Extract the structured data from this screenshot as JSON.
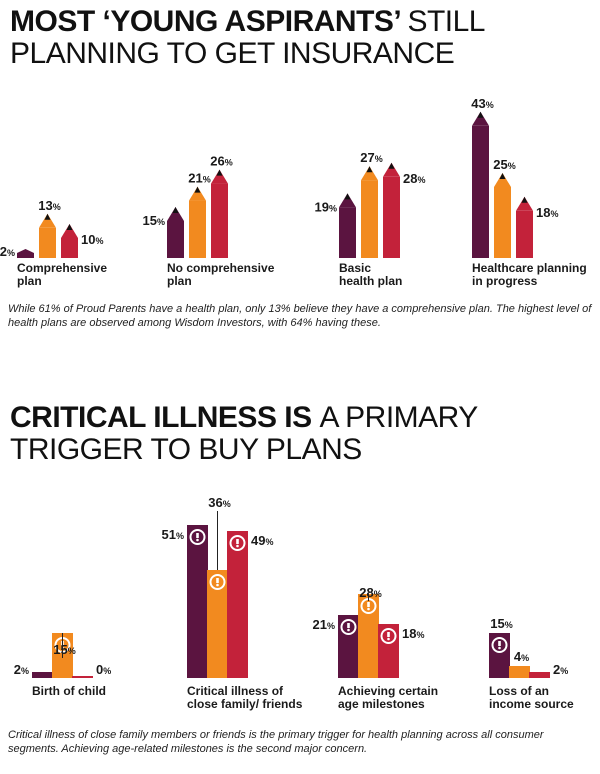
{
  "chart_data": [
    {
      "type": "bar",
      "title_bold": "MOST ‘YOUNG ASPIRANTS’",
      "title_light_1": "STILL",
      "title_line2": "PLANNING TO GET INSURANCE",
      "categories": [
        "Comprehensive plan",
        "No comprehensive plan",
        "Basic health plan",
        "Healthcare planning in progress"
      ],
      "category_lines": [
        [
          "Comprehensive",
          "plan"
        ],
        [
          "No comprehensive",
          "plan"
        ],
        [
          "Basic",
          "health plan"
        ],
        [
          "Healthcare planning",
          "in progress"
        ]
      ],
      "series": [
        {
          "color": "#5b1440",
          "values": [
            2,
            15,
            19,
            43
          ]
        },
        {
          "color": "#f28a1f",
          "values": [
            13,
            21,
            27,
            25
          ]
        },
        {
          "color": "#c3223a",
          "values": [
            10,
            26,
            28,
            18
          ]
        }
      ],
      "labels": [
        [
          "2%",
          "13%",
          "10%"
        ],
        [
          "15%",
          "21%",
          "26%"
        ],
        [
          "19%",
          "27%",
          "28%"
        ],
        [
          "43%",
          "25%",
          "18%"
        ]
      ],
      "caption": "While 61% of Proud Parents have a health plan, only 13% believe they have a comprehensive plan. The highest level of health plans are observed among Wisdom Investors, with 64% having these."
    },
    {
      "type": "bar",
      "title_bold": "CRITICAL ILLNESS IS",
      "title_light_1": "A PRIMARY",
      "title_line2": "TRIGGER TO BUY PLANS",
      "categories": [
        "Birth of child",
        "Critical illness of close family/ friends",
        "Achieving certain age milestones",
        "Loss of an income source"
      ],
      "category_lines": [
        [
          "Birth of child"
        ],
        [
          "Critical illness of",
          "close family/ friends"
        ],
        [
          "Achieving certain",
          "age milestones"
        ],
        [
          "Loss of an",
          "income source"
        ]
      ],
      "series": [
        {
          "color": "#5b1440",
          "values": [
            2,
            51,
            21,
            15
          ]
        },
        {
          "color": "#f28a1f",
          "values": [
            15,
            36,
            28,
            4
          ]
        },
        {
          "color": "#c3223a",
          "values": [
            0,
            49,
            18,
            2
          ]
        }
      ],
      "labels": [
        [
          "2%",
          "15%",
          "0%"
        ],
        [
          "51%",
          "36%",
          "49%"
        ],
        [
          "21%",
          "28%",
          "18%"
        ],
        [
          "15%",
          "4%",
          "2%"
        ]
      ],
      "caption": "Critical illness of close family members or friends is the primary trigger for health planning across all consumer segments. Achieving age-related milestones is the second major concern."
    }
  ]
}
